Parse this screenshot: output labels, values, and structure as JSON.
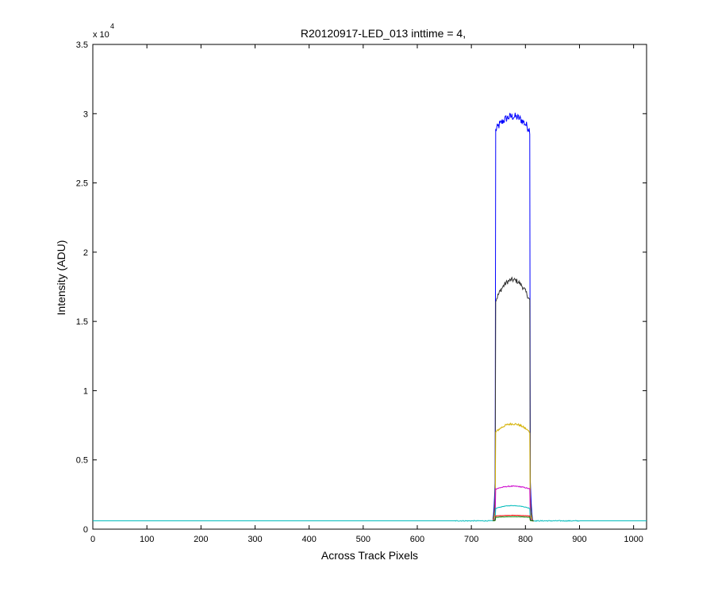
{
  "chart_data": {
    "type": "line",
    "title": "R20120917-LED_013 inttime = 4,",
    "xlabel": "Across Track Pixels",
    "ylabel": "Intensity (ADU)",
    "y_exponent_base": "x 10",
    "y_exponent_power": "4",
    "xlim": [
      0,
      1024
    ],
    "ylim": [
      0,
      35000
    ],
    "x_ticks": [
      0,
      100,
      200,
      300,
      400,
      500,
      600,
      700,
      800,
      900,
      1000
    ],
    "x_tick_labels": [
      "0",
      "100",
      "200",
      "300",
      "400",
      "500",
      "600",
      "700",
      "800",
      "900",
      "1000"
    ],
    "y_ticks": [
      0,
      5000,
      10000,
      15000,
      20000,
      25000,
      30000,
      35000
    ],
    "y_tick_labels": [
      "0",
      "0.5",
      "1",
      "1.5",
      "2",
      "2.5",
      "3",
      "3.5"
    ],
    "grid": false,
    "legend": "none",
    "baseline": 600,
    "series": [
      {
        "color": "#0000ff",
        "peak": 29800,
        "plateau": 28800,
        "edge_left": 745,
        "edge_right": 808,
        "x_range": [
          740,
          815
        ]
      },
      {
        "color": "#333333",
        "peak": 18000,
        "plateau": 16500,
        "edge_left": 745,
        "edge_right": 808,
        "x_range": [
          740,
          815
        ]
      },
      {
        "color": "#d4b000",
        "peak": 7600,
        "plateau": 7000,
        "edge_left": 745,
        "edge_right": 808,
        "x_range": [
          740,
          815
        ]
      },
      {
        "color": "#cc00cc",
        "peak": 3100,
        "plateau": 2900,
        "edge_left": 745,
        "edge_right": 808,
        "x_range": [
          740,
          815
        ]
      },
      {
        "color": "#00bbbb",
        "peak": 1700,
        "plateau": 1500,
        "edge_left": 745,
        "edge_right": 808,
        "x_range": [
          0,
          1024
        ]
      },
      {
        "color": "#ff0000",
        "peak": 1000,
        "plateau": 950,
        "edge_left": 745,
        "edge_right": 808,
        "x_range": [
          740,
          815
        ]
      },
      {
        "color": "#008000",
        "peak": 900,
        "plateau": 850,
        "edge_left": 745,
        "edge_right": 808,
        "x_range": [
          740,
          815
        ]
      }
    ]
  }
}
